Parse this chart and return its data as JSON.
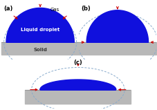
{
  "fig_width": 2.28,
  "fig_height": 1.59,
  "dpi": 100,
  "bg_color": "#ffffff",
  "solid_color": "#b8b8b8",
  "solid_edge": "#888888",
  "droplet_color": "#1010dd",
  "dashed_color": "#88aacc",
  "arrow_color": "#cc0000",
  "text_black": "#000000",
  "text_white": "#ffffff",
  "text_dark": "#333333",
  "label_a": "(a)",
  "label_b": "(b)",
  "label_c": "(c)",
  "text_gas": "Gas",
  "text_liquid": "Liquid droplet",
  "text_solid": "Solid"
}
